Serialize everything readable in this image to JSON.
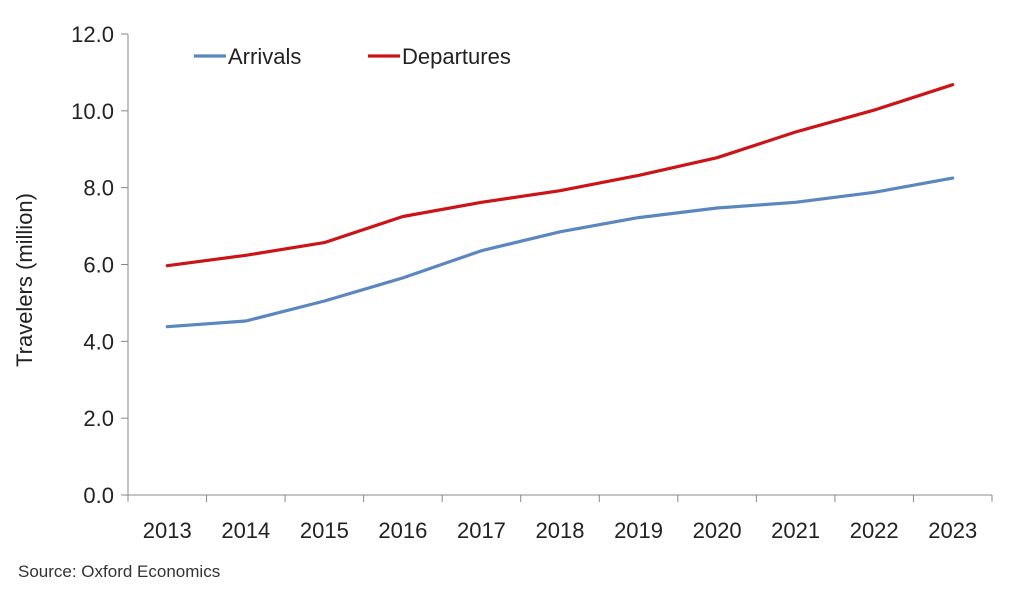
{
  "chart_data": {
    "type": "line",
    "x": [
      "2013",
      "2014",
      "2015",
      "2016",
      "2017",
      "2018",
      "2019",
      "2020",
      "2021",
      "2022",
      "2023"
    ],
    "series": [
      {
        "name": "Arrivals",
        "color": "#5B87C0",
        "values": [
          4.38,
          4.53,
          5.05,
          5.65,
          6.36,
          6.85,
          7.22,
          7.47,
          7.62,
          7.88,
          8.25
        ]
      },
      {
        "name": "Departures",
        "color": "#CC1417",
        "values": [
          5.97,
          6.24,
          6.57,
          7.25,
          7.62,
          7.92,
          8.32,
          8.78,
          9.45,
          10.02,
          10.68
        ]
      }
    ],
    "ylabel": "Travelers (million)",
    "ylim": [
      0,
      12
    ],
    "yticks": [
      "0.0",
      "2.0",
      "4.0",
      "6.0",
      "8.0",
      "10.0",
      "12.0"
    ],
    "grid": false,
    "legend": "top-left"
  },
  "source": "Source: Oxford Economics"
}
